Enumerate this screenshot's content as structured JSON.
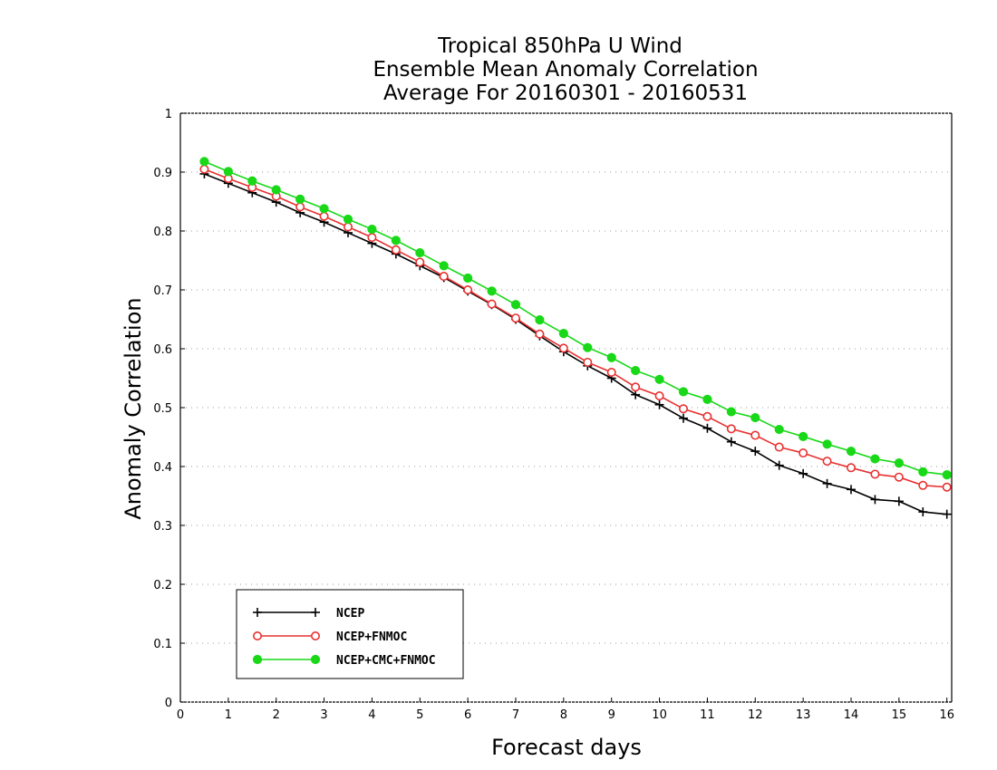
{
  "chart_data": {
    "type": "line",
    "title_lines": [
      "Tropical 850hPa U Wind",
      "Ensemble Mean Anomaly Correlation",
      "Average For 20160301 - 20160531"
    ],
    "xlabel": "Forecast days",
    "ylabel": "Anomaly Correlation",
    "xlim": [
      0,
      16.1
    ],
    "ylim": [
      0,
      1
    ],
    "xticks": [
      "0",
      "1",
      "2",
      "3",
      "4",
      "5",
      "6",
      "7",
      "8",
      "9",
      "10",
      "11",
      "12",
      "13",
      "14",
      "15",
      "16"
    ],
    "yticks": [
      "0",
      "0.1",
      "0.2",
      "0.3",
      "0.4",
      "0.5",
      "0.6",
      "0.7",
      "0.8",
      "0.9",
      "1"
    ],
    "grid": true,
    "legend_position": "bottom-left",
    "x": [
      0.5,
      1,
      1.5,
      2,
      2.5,
      3,
      3.5,
      4,
      4.5,
      5,
      5.5,
      6,
      6.5,
      7,
      7.5,
      8,
      8.5,
      9,
      9.5,
      10,
      10.5,
      11,
      11.5,
      12,
      12.5,
      13,
      13.5,
      14,
      14.5,
      15,
      15.5,
      16
    ],
    "series": [
      {
        "name": "NCEP",
        "color": "#000000",
        "marker": "plus",
        "values": [
          0.897,
          0.881,
          0.865,
          0.849,
          0.831,
          0.815,
          0.797,
          0.779,
          0.761,
          0.741,
          0.721,
          0.698,
          0.675,
          0.65,
          0.622,
          0.595,
          0.571,
          0.55,
          0.522,
          0.505,
          0.482,
          0.465,
          0.442,
          0.426,
          0.402,
          0.388,
          0.371,
          0.361,
          0.344,
          0.341,
          0.323,
          0.319
        ]
      },
      {
        "name": "NCEP+FNMOC",
        "color": "#e83030",
        "marker": "open-circle",
        "values": [
          0.905,
          0.889,
          0.874,
          0.859,
          0.841,
          0.825,
          0.807,
          0.789,
          0.768,
          0.747,
          0.723,
          0.7,
          0.676,
          0.652,
          0.625,
          0.601,
          0.577,
          0.56,
          0.535,
          0.52,
          0.498,
          0.485,
          0.464,
          0.453,
          0.433,
          0.423,
          0.409,
          0.398,
          0.387,
          0.382,
          0.368,
          0.365
        ]
      },
      {
        "name": "NCEP+CMC+FNMOC",
        "color": "#18d818",
        "marker": "filled-circle",
        "values": [
          0.918,
          0.901,
          0.885,
          0.87,
          0.854,
          0.838,
          0.82,
          0.803,
          0.784,
          0.763,
          0.741,
          0.72,
          0.698,
          0.675,
          0.649,
          0.626,
          0.602,
          0.585,
          0.563,
          0.548,
          0.527,
          0.514,
          0.493,
          0.483,
          0.463,
          0.451,
          0.438,
          0.426,
          0.413,
          0.406,
          0.391,
          0.386
        ]
      }
    ]
  }
}
